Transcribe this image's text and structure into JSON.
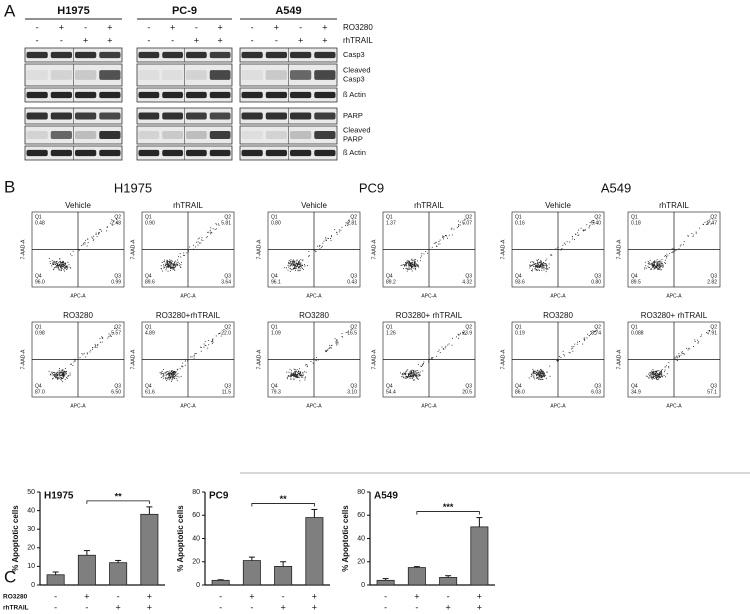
{
  "panel_labels": [
    "A",
    "B",
    "C"
  ],
  "blot": {
    "cell_lines": [
      "H1975",
      "PC-9",
      "A549"
    ],
    "treatments": [
      {
        "name": "RO3280",
        "signs": [
          "-",
          "+",
          "-",
          "+"
        ]
      },
      {
        "name": "rhTRAIL",
        "signs": [
          "-",
          "-",
          "+",
          "+"
        ]
      }
    ],
    "bands": [
      {
        "label": [
          "Casp3"
        ]
      },
      {
        "label": [
          "Cleaved",
          "Casp3"
        ]
      },
      {
        "label": [
          "ß Actin"
        ]
      },
      {
        "label": [
          "PARP"
        ]
      },
      {
        "label": [
          "Cleaved",
          "PARP"
        ]
      },
      {
        "label": [
          "ß Actin"
        ]
      }
    ]
  },
  "flow": {
    "x_label": "APC-A",
    "y_label": "7-AAD-A",
    "quadrants": [
      "Q1",
      "Q2",
      "Q3",
      "Q4"
    ],
    "groups": [
      {
        "name": "H1975",
        "plots": [
          {
            "title": "Vehicle",
            "values": [
              "0.48",
              "2.48",
              "0.99",
              "96.0"
            ]
          },
          {
            "title": "rhTRAIL",
            "values": [
              "0.90",
              "5.81",
              "3.64",
              "89.6"
            ]
          },
          {
            "title": "RO3280",
            "values": [
              "0.98",
              "5.57",
              "6.50",
              "87.0"
            ]
          },
          {
            "title": "RO3280+rhTRAIL",
            "values": [
              "4.89",
              "22.0",
              "11.5",
              "61.6"
            ]
          }
        ]
      },
      {
        "name": "PC9",
        "plots": [
          {
            "title": "Vehicle",
            "values": [
              "0.80",
              "2.81",
              "0.43",
              "96.1"
            ]
          },
          {
            "title": "rhTRAIL",
            "values": [
              "1.37",
              "5.07",
              "4.32",
              "89.2"
            ]
          },
          {
            "title": "RO3280",
            "values": [
              "1.09",
              "16.5",
              "3.10",
              "79.3"
            ]
          },
          {
            "title": "RO3280+ rhTRAIL",
            "values": [
              "1.26",
              "23.9",
              "20.5",
              "54.4"
            ]
          }
        ]
      },
      {
        "name": "A549",
        "plots": [
          {
            "title": "Vehicle",
            "values": [
              "0.16",
              "5.40",
              "0.80",
              "93.6"
            ]
          },
          {
            "title": "rhTRAIL",
            "values": [
              "0.18",
              "7.47",
              "2.82",
              "89.5"
            ]
          },
          {
            "title": "RO3280",
            "values": [
              "0.19",
              "8.74",
              "6.03",
              "86.0"
            ]
          },
          {
            "title": "RO3280+ rhTRAIL",
            "values": [
              "0.088",
              "7.91",
              "57.1",
              "34.9"
            ]
          }
        ]
      }
    ]
  },
  "bar_treatments": [
    {
      "name": "RO3280",
      "signs": [
        "-",
        "+",
        "-",
        "+"
      ]
    },
    {
      "name": "rhTRAIL",
      "signs": [
        "-",
        "-",
        "+",
        "+"
      ]
    }
  ],
  "chart_data": [
    {
      "type": "bar",
      "title": "H1975",
      "y_label": "% Apoptotic cells",
      "color": "#7f7f7f",
      "values": [
        5.5,
        16,
        12,
        38
      ],
      "errors": [
        1.5,
        2.5,
        1.2,
        4
      ],
      "significance": "**",
      "ylim": [
        0,
        50
      ],
      "yticks": [
        0,
        10,
        20,
        30,
        40,
        50
      ]
    },
    {
      "type": "bar",
      "title": "PC9",
      "y_label": "% Apoptotic cells",
      "color": "#7f7f7f",
      "values": [
        4,
        21,
        16,
        58
      ],
      "errors": [
        0.5,
        3,
        4,
        7
      ],
      "significance": "**",
      "ylim": [
        0,
        80
      ],
      "yticks": [
        0,
        20,
        40,
        60,
        80
      ]
    },
    {
      "type": "bar",
      "title": "A549",
      "y_label": "% Apoptotic cells",
      "color": "#7f7f7f",
      "values": [
        4,
        15,
        6.5,
        50
      ],
      "errors": [
        1.5,
        0.8,
        1.5,
        8
      ],
      "significance": "***",
      "ylim": [
        0,
        80
      ],
      "yticks": [
        0,
        20,
        40,
        60,
        80
      ]
    }
  ]
}
